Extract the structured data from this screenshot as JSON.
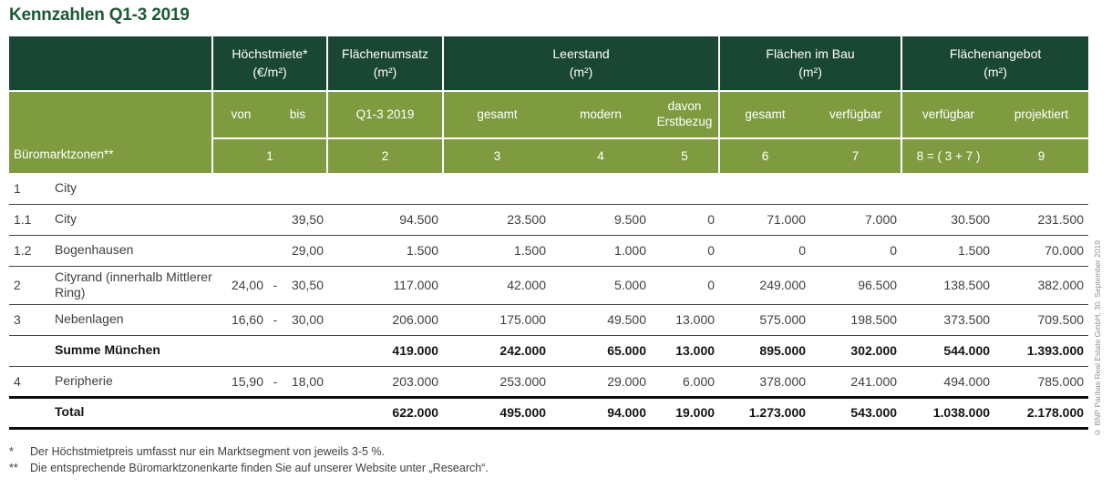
{
  "title": "Kennzahlen Q1-3 2019",
  "colors": {
    "header_dark_green": "#1a4733",
    "header_olive_green": "#7e9c3f",
    "title_green": "#1a5b36",
    "total_rule_black": "#0d0d0d"
  },
  "header": {
    "groups": [
      {
        "label": "Höchstmiete*",
        "unit": "(€/m²)"
      },
      {
        "label": "Flächenumsatz",
        "unit": "(m²)"
      },
      {
        "label": "Leerstand",
        "unit": "(m²)"
      },
      {
        "label": "Flächen im Bau",
        "unit": "(m²)"
      },
      {
        "label": "Flächenangebot",
        "unit": "(m²)"
      }
    ],
    "zones_label": "Büromarktzonen**",
    "sub": {
      "von": "von",
      "bis": "bis",
      "umsatz": "Q1-3 2019",
      "leer_gesamt": "gesamt",
      "modern": "modern",
      "erstbezug": "davon Erstbezug",
      "bau_gesamt": "gesamt",
      "bau_verf": "verfügbar",
      "ang_verf": "verfügbar",
      "projektiert": "projektiert"
    },
    "nums": {
      "n1": "1",
      "n2": "2",
      "n3": "3",
      "n4": "4",
      "n5": "5",
      "n6": "6",
      "n7": "7",
      "n8": "8 = ( 3 + 7 )",
      "n9": "9"
    }
  },
  "rows": [
    {
      "num": "1",
      "name": "City",
      "von": "",
      "dash": "",
      "bis": "",
      "values": [
        "",
        "",
        "",
        "",
        "",
        "",
        "",
        ""
      ]
    },
    {
      "num": "1.1",
      "name": "City",
      "von": "",
      "dash": "",
      "bis": "39,50",
      "values": [
        "94.500",
        "23.500",
        "9.500",
        "0",
        "71.000",
        "7.000",
        "30.500",
        "231.500"
      ]
    },
    {
      "num": "1.2",
      "name": "Bogenhausen",
      "von": "",
      "dash": "",
      "bis": "29,00",
      "values": [
        "1.500",
        "1.500",
        "1.000",
        "0",
        "0",
        "0",
        "1.500",
        "70.000"
      ]
    },
    {
      "num": "2",
      "name": "Cityrand (innerhalb Mittlerer Ring)",
      "von": "24,00",
      "dash": "-",
      "bis": "30,50",
      "values": [
        "117.000",
        "42.000",
        "5.000",
        "0",
        "249.000",
        "96.500",
        "138.500",
        "382.000"
      ]
    },
    {
      "num": "3",
      "name": "Nebenlagen",
      "von": "16,60",
      "dash": "-",
      "bis": "30,00",
      "values": [
        "206.000",
        "175.000",
        "49.500",
        "13.000",
        "575.000",
        "198.500",
        "373.500",
        "709.500"
      ]
    },
    {
      "num": "",
      "name": "Summe München",
      "bold": true,
      "von": "",
      "dash": "",
      "bis": "",
      "values": [
        "419.000",
        "242.000",
        "65.000",
        "13.000",
        "895.000",
        "302.000",
        "544.000",
        "1.393.000"
      ]
    },
    {
      "num": "4",
      "name": "Peripherie",
      "von": "15,90",
      "dash": "-",
      "bis": "18,00",
      "values": [
        "203.000",
        "253.000",
        "29.000",
        "6.000",
        "378.000",
        "241.000",
        "494.000",
        "785.000"
      ]
    },
    {
      "num": "",
      "name": "Total",
      "bold": true,
      "total": true,
      "von": "",
      "dash": "",
      "bis": "",
      "values": [
        "622.000",
        "495.000",
        "94.000",
        "19.000",
        "1.273.000",
        "543.000",
        "1.038.000",
        "2.178.000"
      ]
    }
  ],
  "footnotes": [
    {
      "marker": "*",
      "text": "Der Höchstmietpreis umfasst nur ein Marktsegment von jeweils 3-5 %."
    },
    {
      "marker": "**",
      "text": "Die entsprechende Büromarktzonenkarte finden Sie auf unserer Website unter „Research“."
    }
  ],
  "copyright": "© BNP Paribas Real Estate GmbH, 30. September 2019"
}
